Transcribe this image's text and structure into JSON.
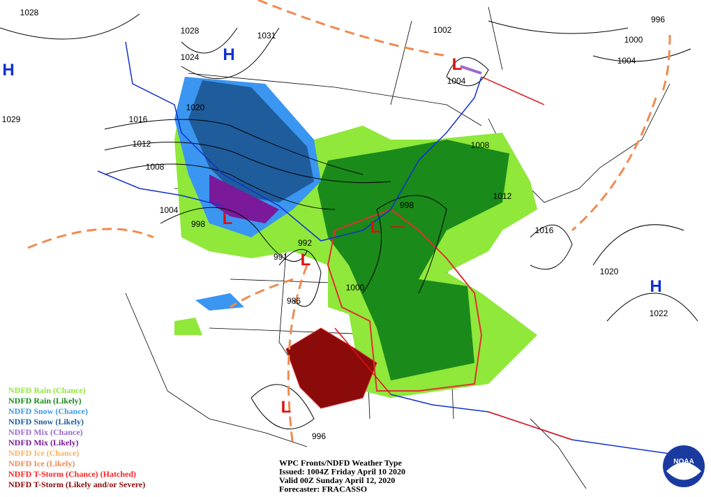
{
  "map": {
    "isobar_labels": [
      "1028",
      "1028",
      "1031",
      "1024",
      "1020",
      "1016",
      "1012",
      "1008",
      "1004",
      "998",
      "1029",
      "992",
      "991",
      "986",
      "1000",
      "998",
      "1012",
      "1016",
      "1008",
      "1004",
      "1002",
      "996",
      "1000",
      "1004",
      "1020",
      "1022",
      "996"
    ],
    "centers": [
      {
        "label": "H",
        "color": "#1030d0"
      },
      {
        "label": "H",
        "color": "#1030d0"
      },
      {
        "label": "H",
        "color": "#1030d0"
      },
      {
        "label": "L",
        "color": "#e01010"
      },
      {
        "label": "L",
        "color": "#e01010"
      },
      {
        "label": "L",
        "color": "#e01010"
      },
      {
        "label": "L",
        "color": "#e01010"
      },
      {
        "label": "L",
        "color": "#e01010"
      }
    ],
    "legend": [
      {
        "label": "NDFD Rain (Chance)",
        "color": "#8fe83a"
      },
      {
        "label": "NDFD Rain (Likely)",
        "color": "#1a8a1a"
      },
      {
        "label": "NDFD Snow (Chance)",
        "color": "#3a96f0"
      },
      {
        "label": "NDFD Snow (Likely)",
        "color": "#1f5c9c"
      },
      {
        "label": "NDFD Mix (Chance)",
        "color": "#9a6ad0"
      },
      {
        "label": "NDFD Mix (Likely)",
        "color": "#7a1a9a"
      },
      {
        "label": "NDFD Ice (Chance)",
        "color": "#ffb060"
      },
      {
        "label": "NDFD Ice (Likely)",
        "color": "#f08a50"
      },
      {
        "label": "NDFD T-Storm (Chance) (Hatched)",
        "color": "#ff2020"
      },
      {
        "label": "NDFD T-Storm (Likely and/or Severe)",
        "color": "#8b0a0a"
      }
    ],
    "caption": [
      "WPC Fronts/NDFD Weather Type",
      "Issued: 1004Z Friday April 10 2020",
      "Valid 00Z Sunday April 12, 2020",
      "Forecaster: FRACASSO"
    ],
    "logo": "NOAA"
  }
}
